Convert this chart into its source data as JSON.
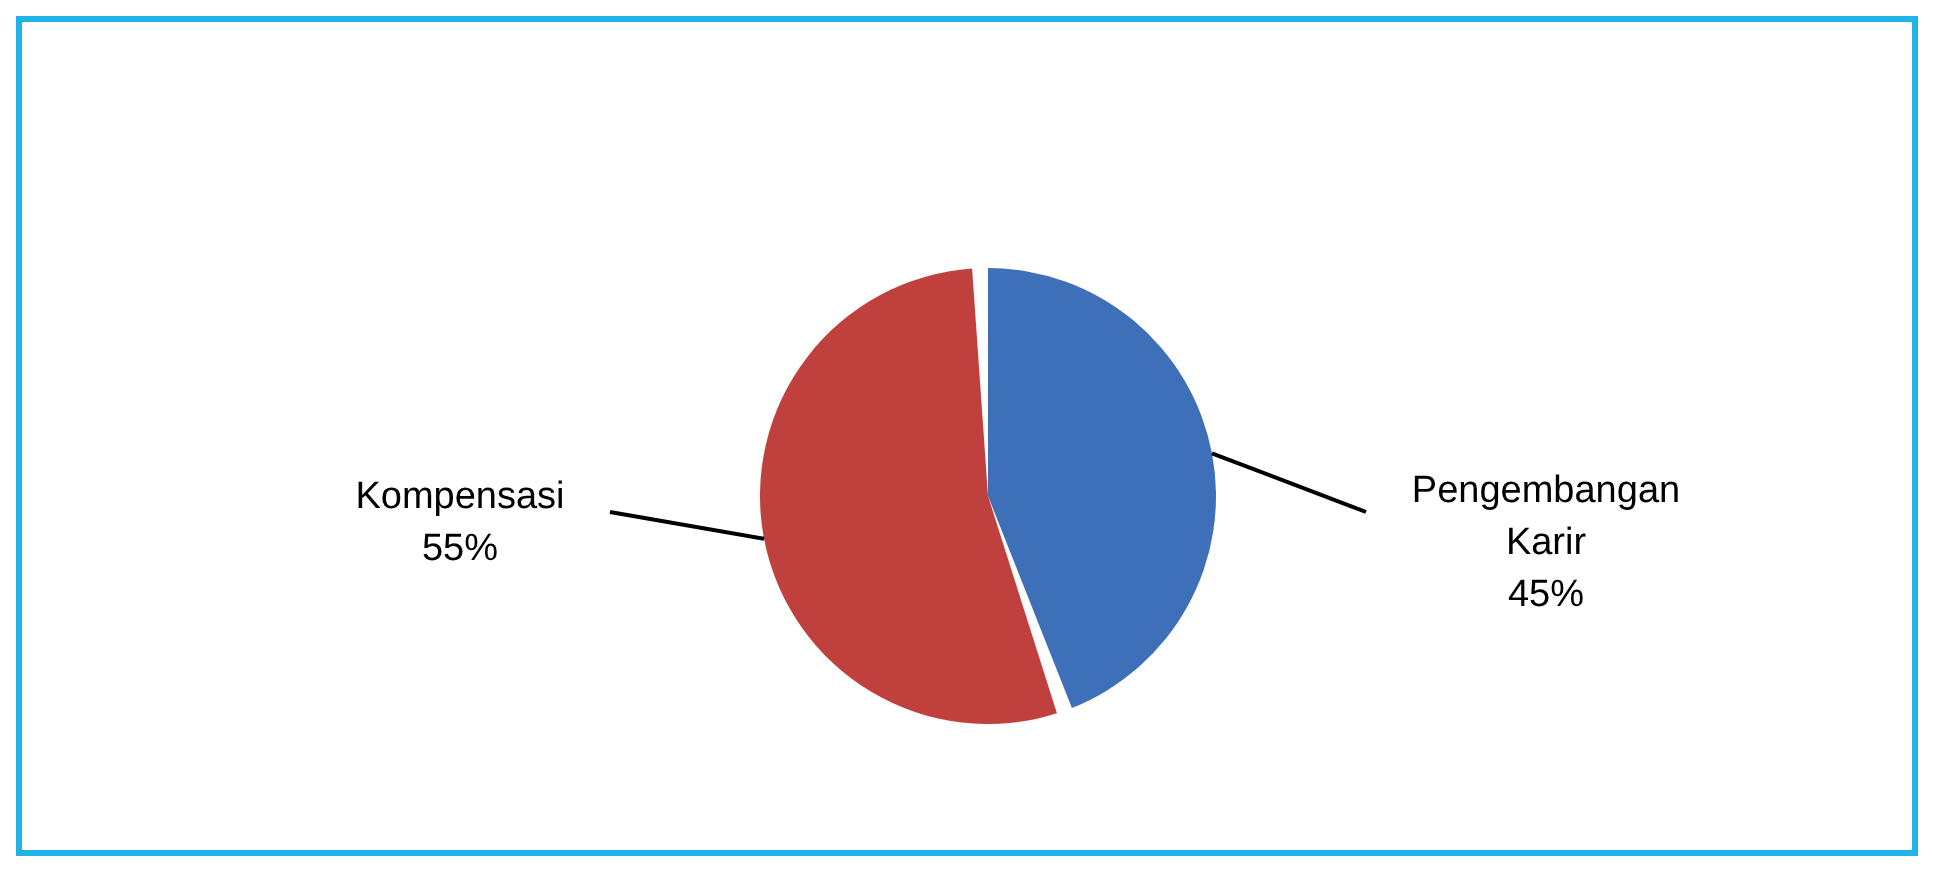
{
  "chart_data": {
    "type": "pie",
    "categories": [
      "Pengembangan Karir",
      "Kompensasi"
    ],
    "values": [
      45,
      55
    ],
    "colors": [
      "#3d70b8",
      "#c0403d"
    ],
    "value_labels": [
      "45%",
      "55%"
    ],
    "legend": false
  }
}
